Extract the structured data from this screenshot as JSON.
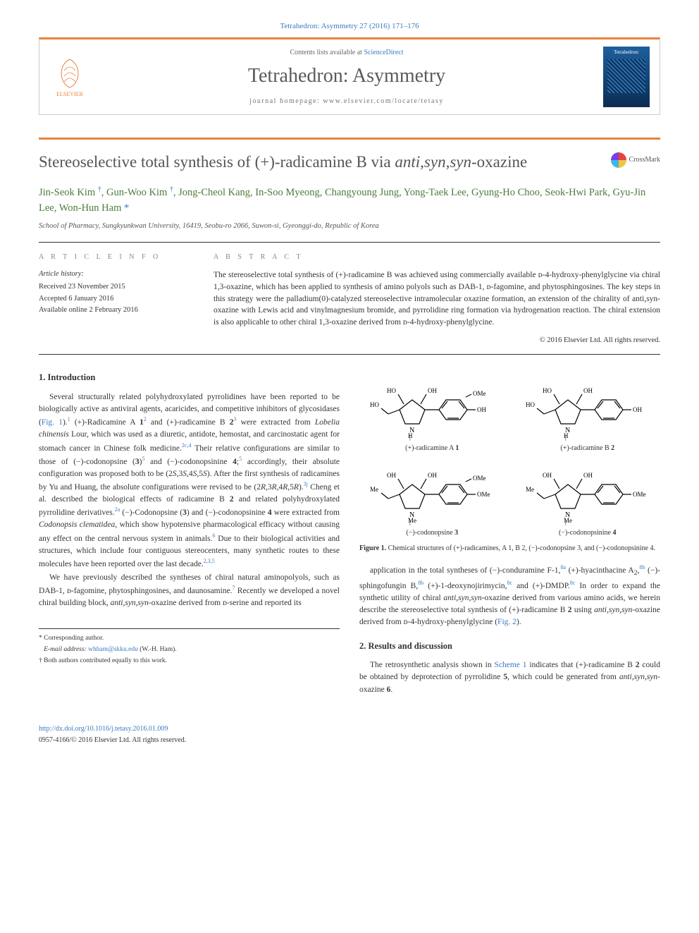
{
  "header": {
    "citation": "Tetrahedron: Asymmetry 27 (2016) 171–176",
    "contents_prefix": "Contents lists available at ",
    "contents_link": "ScienceDirect",
    "journal": "Tetrahedron: Asymmetry",
    "homepage_prefix": "journal homepage: ",
    "homepage_url": "www.elsevier.com/locate/tetasy",
    "publisher_label": "ELSEVIER",
    "cover_label": "Tetrahedron:"
  },
  "article": {
    "title_pre": "Stereoselective total synthesis of (+)-radicamine B via ",
    "title_em": "anti,syn,syn",
    "title_post": "-oxazine",
    "crossmark_label": "CrossMark",
    "authors_html": "Jin-Seok Kim <sup>†</sup>, Gun-Woo Kim <sup>†</sup>, Jong-Cheol Kang, In-Soo Myeong, Changyoung Jung, Yong-Taek Lee, Gyung-Ho Choo, Seok-Hwi Park, Gyu-Jin Lee, Won-Hun Ham <span class='corr'>*</span>",
    "affiliation": "School of Pharmacy, Sungkyunkwan University, 16419, Seobu-ro 2066, Suwon-si, Gyeonggi-do, Republic of Korea",
    "info_head": "A R T I C L E   I N F O",
    "history_label": "Article history:",
    "history": [
      "Received 23 November 2015",
      "Accepted 6 January 2016",
      "Available online 2 February 2016"
    ],
    "abs_head": "A B S T R A C T",
    "abstract": "The stereoselective total synthesis of (+)-radicamine B was achieved using commercially available ᴅ-4-hydroxy-phenylglycine via chiral 1,3-oxazine, which has been applied to synthesis of amino polyols such as DAB-1, ᴅ-fagomine, and phytosphingosines. The key steps in this strategy were the palladium(0)-catalyzed stereoselective intramolecular oxazine formation, an extension of the chirality of anti,syn-oxazine with Lewis acid and vinylmagnesium bromide, and pyrrolidine ring formation via hydrogenation reaction. The chiral extension is also applicable to other chiral 1,3-oxazine derived from ᴅ-4-hydroxy-phenylglycine.",
    "copyright": "© 2016 Elsevier Ltd. All rights reserved."
  },
  "sections": {
    "s1_title": "1. Introduction",
    "s2_title": "2. Results and discussion",
    "p1": "Several structurally related polyhydroxylated pyrrolidines have been reported to be biologically active as antiviral agents, acaricides, and competitive inhibitors of glycosidases (<a class='ref'>Fig. 1</a>).<sup>1</sup> (+)-Radicamine A <b>1</b><sup>2</sup> and (+)-radicamine B <b>2</b><sup>3</sup> were extracted from <em>Lobelia chinensis</em> Lour, which was used as a diuretic, antidote, hemostat, and carcinostatic agent for stomach cancer in Chinese folk medicine.<sup>2c,4</sup> Their relative configurations are similar to those of (−)-codonopsine (<b>3</b>)<sup>5</sup> and (−)-codonopsinine <b>4</b>;<sup>5</sup> accordingly, their absolute configuration was proposed both to be (2<em>S</em>,3<em>S</em>,4<em>S</em>,5<em>S</em>). After the first synthesis of radicamines by Yu and Huang, the absolute configurations were revised to be (2<em>R</em>,3<em>R</em>,4<em>R</em>,5<em>R</em>).<sup>3j</sup> Cheng et al. described the biological effects of radicamine B <b>2</b> and related polyhydroxylated pyrrolidine derivatives.<sup>2a</sup> (−)-Codonopsine (<b>3</b>) and (−)-codonopsinine <b>4</b> were extracted from <em>Codonopsis clematidea</em>, which show hypotensive pharmacological efficacy without causing any effect on the central nervous system in animals.<sup>6</sup> Due to their biological activities and structures, which include four contiguous stereocenters, many synthetic routes to these molecules have been reported over the last decade.<sup>2,3,5</sup>",
    "p2": "We have previously described the syntheses of chiral natural aminopolyols, such as DAB-1, ᴅ-fagomine, phytosphingosines, and daunosamine.<sup>7</sup> Recently we developed a novel chiral building block, <em>anti,syn,syn</em>-oxazine derived from ᴅ-serine and reported its",
    "p3": "application in the total syntheses of (−)-conduramine F-1,<sup>8a</sup> (+)-hyacinthacine A<sub>2</sub>,<sup>8b</sup> (−)-sphingofungin B,<sup>8b</sup> (+)-1-deoxynojirimycin,<sup>8c</sup> and (+)-DMDP.<sup>8c</sup> In order to expand the synthetic utility of chiral <em>anti,syn,syn</em>-oxazine derived from various amino acids, we herein describe the stereoselective total synthesis of (+)-radicamine B <b>2</b> using <em>anti,syn,syn</em>-oxazine derived from ᴅ-4-hydroxy-phenylglycine (<a class='ref'>Fig. 2</a>).",
    "p4": "The retrosynthetic analysis shown in <a class='ref'>Scheme 1</a> indicates that (+)-radicamine B <b>2</b> could be obtained by deprotection of pyrrolidine <b>5</b>, which could be generated from <em>anti,syn,syn</em>-oxazine <b>6</b>."
  },
  "figure1": {
    "caption_b": "Figure 1.",
    "caption": " Chemical structures of (+)-radicamines, A 1, B 2, (−)-codonopsine 3, and (−)-codonopsinine 4.",
    "structures": [
      {
        "label_pre": "(+)-radicamine A ",
        "num": "1",
        "ring_N": "N",
        "ring_H": "H",
        "top_left": "HO",
        "top_right": "OH",
        "side": "HO",
        "aryl_sub1": "OMe",
        "aryl_sub2": "OH"
      },
      {
        "label_pre": "(+)-radicamine B ",
        "num": "2",
        "ring_N": "N",
        "ring_H": "H",
        "top_left": "HO",
        "top_right": "OH",
        "side": "HO",
        "aryl_sub1": "",
        "aryl_sub2": "OH"
      },
      {
        "label_pre": "(−)-codonopsine ",
        "num": "3",
        "ring_N": "N",
        "ring_H": "Me",
        "top_left": "OH",
        "top_right": "OH",
        "side": "Me",
        "aryl_sub1": "OMe",
        "aryl_sub2": "OMe"
      },
      {
        "label_pre": "(−)-codonopsinine ",
        "num": "4",
        "ring_N": "N",
        "ring_H": "Me",
        "top_left": "OH",
        "top_right": "OH",
        "side": "Me",
        "aryl_sub1": "",
        "aryl_sub2": "OMe"
      }
    ]
  },
  "footnotes": {
    "corr_label": "* Corresponding author.",
    "email_label": "E-mail address:",
    "email": "whham@skku.edu",
    "email_who": " (W.-H. Ham).",
    "equal": "† Both authors contributed equally to this work."
  },
  "footer": {
    "doi": "http://dx.doi.org/10.1016/j.tetasy.2016.01.009",
    "issn_line": "0957-4166/© 2016 Elsevier Ltd. All rights reserved."
  },
  "style": {
    "accent": "#e8833e",
    "link": "#3b7bbf",
    "author_color": "#4b7c3c"
  }
}
